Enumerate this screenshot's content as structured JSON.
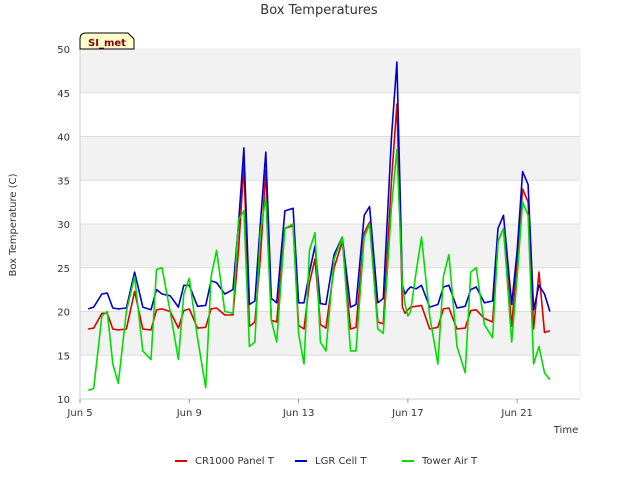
{
  "chart_data": {
    "type": "line",
    "title": "Box Temperatures",
    "xlabel": "Time",
    "ylabel": "Box Temperature (C)",
    "badge": "SI_met",
    "xlim": [
      5,
      23.3
    ],
    "ylim": [
      10,
      50
    ],
    "yticks": [
      10,
      15,
      20,
      25,
      30,
      35,
      40,
      45,
      50
    ],
    "xticks": [
      {
        "value": 5,
        "label": "Jun 5"
      },
      {
        "value": 9,
        "label": "Jun 9"
      },
      {
        "value": 13,
        "label": "Jun 13"
      },
      {
        "value": 17,
        "label": "Jun 17"
      },
      {
        "value": 21,
        "label": "Jun 21"
      }
    ],
    "grid": true,
    "colors": {
      "CR1000 Panel T": "#dd0000",
      "LGR Cell T": "#0000cc",
      "Tower Air T": "#00dd00"
    },
    "series": [
      {
        "name": "CR1000 Panel T",
        "x": [
          5.3,
          5.5,
          5.8,
          6.0,
          6.2,
          6.4,
          6.7,
          7.0,
          7.3,
          7.6,
          7.8,
          8.0,
          8.3,
          8.6,
          8.8,
          9.0,
          9.3,
          9.6,
          9.8,
          10.0,
          10.3,
          10.6,
          10.8,
          11.0,
          11.2,
          11.4,
          11.6,
          11.8,
          12.0,
          12.2,
          12.5,
          12.8,
          13.0,
          13.2,
          13.4,
          13.6,
          13.8,
          14.0,
          14.3,
          14.6,
          14.9,
          15.1,
          15.4,
          15.6,
          15.9,
          16.1,
          16.4,
          16.6,
          16.8,
          16.9,
          17.0,
          17.1,
          17.3,
          17.5,
          17.8,
          18.1,
          18.3,
          18.5,
          18.8,
          19.1,
          19.3,
          19.5,
          19.8,
          20.1,
          20.3,
          20.5,
          20.8,
          21.0,
          21.2,
          21.4,
          21.6,
          21.8,
          22.0,
          22.2,
          22.4,
          22.6,
          22.8
        ],
        "values": [
          18.0,
          18.1,
          19.8,
          19.8,
          18.0,
          17.9,
          18.0,
          22.3,
          18.0,
          17.9,
          20.2,
          20.3,
          20.0,
          18.1,
          20.1,
          20.3,
          18.1,
          18.2,
          20.3,
          20.4,
          19.6,
          19.6,
          27.0,
          36.7,
          18.3,
          18.8,
          26.0,
          36.2,
          19.0,
          18.8,
          29.5,
          29.8,
          18.4,
          18.0,
          23.3,
          26.0,
          18.5,
          18.1,
          25.0,
          28.0,
          18.0,
          18.2,
          29.0,
          30.2,
          18.8,
          18.6,
          35.0,
          43.7,
          20.5,
          19.8,
          20.2,
          20.5,
          20.6,
          20.7,
          18.0,
          18.2,
          20.3,
          20.4,
          18.0,
          18.1,
          20.1,
          20.2,
          19.2,
          18.8,
          28.0,
          29.5,
          18.3,
          26.0,
          34.0,
          32.5,
          18.0,
          24.5,
          17.6,
          17.8,
          null,
          null,
          null
        ]
      },
      {
        "name": "LGR Cell T",
        "x": [
          5.3,
          5.5,
          5.8,
          6.0,
          6.2,
          6.4,
          6.7,
          7.0,
          7.3,
          7.6,
          7.8,
          8.0,
          8.3,
          8.6,
          8.8,
          9.0,
          9.3,
          9.6,
          9.8,
          10.0,
          10.3,
          10.6,
          10.8,
          11.0,
          11.2,
          11.4,
          11.6,
          11.8,
          12.0,
          12.2,
          12.5,
          12.8,
          13.0,
          13.2,
          13.4,
          13.6,
          13.8,
          14.0,
          14.3,
          14.6,
          14.9,
          15.1,
          15.4,
          15.6,
          15.9,
          16.1,
          16.4,
          16.6,
          16.8,
          16.9,
          17.0,
          17.1,
          17.3,
          17.5,
          17.8,
          18.1,
          18.3,
          18.5,
          18.8,
          19.1,
          19.3,
          19.5,
          19.8,
          20.1,
          20.3,
          20.5,
          20.8,
          21.0,
          21.2,
          21.4,
          21.6,
          21.8,
          22.0,
          22.2,
          22.4,
          22.6,
          22.8
        ],
        "values": [
          20.3,
          20.5,
          22.0,
          22.1,
          20.4,
          20.3,
          20.4,
          24.5,
          20.5,
          20.2,
          22.5,
          22.0,
          21.8,
          20.5,
          23.0,
          23.0,
          20.6,
          20.7,
          23.5,
          23.3,
          22.0,
          22.5,
          30.0,
          38.7,
          20.8,
          21.2,
          30.0,
          38.2,
          21.5,
          21.0,
          31.5,
          31.8,
          21.0,
          21.0,
          24.5,
          27.5,
          20.9,
          20.8,
          26.5,
          28.5,
          20.5,
          20.8,
          31.0,
          32.0,
          21.0,
          21.5,
          40.0,
          48.5,
          23.0,
          22.0,
          22.5,
          22.8,
          22.6,
          23.0,
          20.5,
          20.8,
          22.8,
          23.0,
          20.4,
          20.6,
          22.5,
          22.8,
          21.0,
          21.2,
          29.5,
          31.0,
          20.8,
          27.0,
          36.0,
          34.5,
          20.2,
          23.0,
          22.0,
          20.0,
          null,
          null,
          null
        ]
      },
      {
        "name": "Tower Air T",
        "x": [
          5.3,
          5.5,
          5.8,
          6.0,
          6.2,
          6.4,
          6.7,
          7.0,
          7.3,
          7.6,
          7.8,
          8.0,
          8.3,
          8.6,
          8.8,
          9.0,
          9.3,
          9.6,
          9.8,
          10.0,
          10.3,
          10.6,
          10.8,
          11.0,
          11.2,
          11.4,
          11.6,
          11.8,
          12.0,
          12.2,
          12.5,
          12.8,
          13.0,
          13.2,
          13.4,
          13.6,
          13.8,
          14.0,
          14.3,
          14.6,
          14.9,
          15.1,
          15.4,
          15.6,
          15.9,
          16.1,
          16.4,
          16.6,
          16.8,
          16.9,
          17.0,
          17.1,
          17.3,
          17.5,
          17.8,
          18.1,
          18.3,
          18.5,
          18.8,
          19.1,
          19.3,
          19.5,
          19.8,
          20.1,
          20.3,
          20.5,
          20.8,
          21.0,
          21.2,
          21.4,
          21.6,
          21.8,
          22.0,
          22.2,
          22.4,
          22.6,
          22.8
        ],
        "values": [
          11.0,
          11.2,
          19.5,
          20.0,
          14.0,
          11.8,
          20.0,
          24.0,
          15.5,
          14.5,
          24.8,
          25.0,
          20.0,
          14.5,
          22.0,
          23.8,
          17.0,
          11.3,
          24.0,
          27.0,
          20.0,
          19.8,
          30.5,
          31.5,
          16.0,
          16.5,
          29.0,
          33.0,
          19.0,
          16.5,
          29.5,
          30.0,
          17.5,
          14.0,
          27.0,
          29.0,
          16.5,
          15.5,
          26.0,
          28.5,
          15.5,
          15.5,
          28.5,
          30.0,
          18.0,
          17.5,
          32.0,
          38.5,
          23.0,
          20.8,
          19.5,
          20.0,
          24.5,
          28.5,
          19.5,
          14.0,
          24.0,
          26.5,
          16.0,
          13.0,
          24.5,
          25.0,
          18.5,
          17.0,
          28.0,
          29.5,
          16.5,
          24.0,
          32.5,
          31.0,
          14.0,
          16.0,
          13.0,
          12.2,
          null,
          null,
          null
        ]
      }
    ],
    "legend": [
      {
        "label": "CR1000 Panel T"
      },
      {
        "label": "LGR Cell T"
      },
      {
        "label": "Tower Air T"
      }
    ],
    "legend_position": "bottom-center"
  }
}
